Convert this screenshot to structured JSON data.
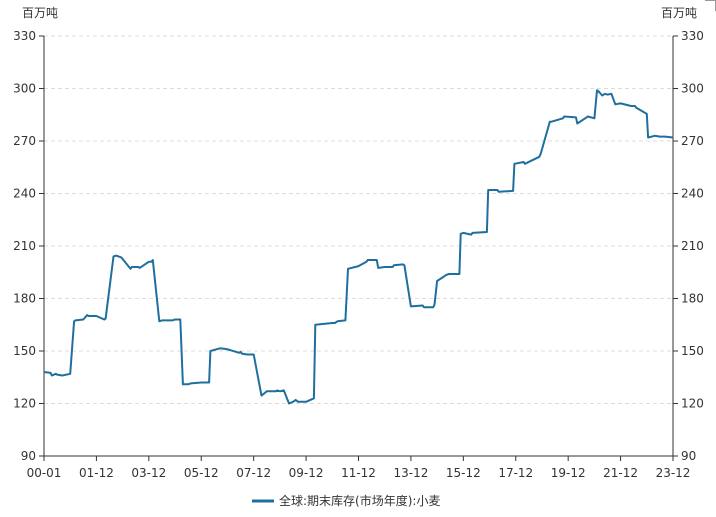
{
  "chart_data": {
    "type": "line",
    "y_unit_left": "百万吨",
    "y_unit_right": "百万吨",
    "ylim": [
      90,
      330
    ],
    "y_ticks": [
      90,
      120,
      150,
      180,
      210,
      240,
      270,
      300,
      330
    ],
    "x_tick_labels": [
      "00-01",
      "01-12",
      "03-12",
      "05-12",
      "07-12",
      "09-12",
      "11-12",
      "13-12",
      "15-12",
      "17-12",
      "19-12",
      "21-12",
      "23-12"
    ],
    "xlim": [
      2000.0,
      2024.0
    ],
    "grid": "horizontal dashed",
    "legend_position": "bottom",
    "colors": {
      "series": "#1f6f9e",
      "axis": "#333333",
      "grid": "#dddddd"
    },
    "series": [
      {
        "name": "全球:期末库存(市场年度):小麦",
        "x": [
          2000.0,
          2000.25,
          2000.3,
          2000.45,
          2000.5,
          2000.7,
          2001.0,
          2001.15,
          2001.2,
          2001.5,
          2001.65,
          2001.7,
          2002.0,
          2002.3,
          2002.35,
          2002.65,
          2002.75,
          2002.95,
          2003.3,
          2003.35,
          2003.6,
          2003.65,
          2004.0,
          2004.1,
          2004.15,
          2004.4,
          2004.5,
          2004.9,
          2005.0,
          2005.2,
          2005.3,
          2005.5,
          2005.6,
          2006.0,
          2006.3,
          2006.35,
          2006.7,
          2006.75,
          2007.0,
          2007.45,
          2007.5,
          2007.55,
          2007.75,
          2008.0,
          2008.3,
          2008.5,
          2008.85,
          2008.9,
          2009.0,
          2009.15,
          2009.35,
          2009.5,
          2009.6,
          2009.7,
          2009.75,
          2010.0,
          2010.3,
          2010.35,
          2011.0,
          2011.1,
          2011.2,
          2011.5,
          2011.6,
          2012.0,
          2012.3,
          2012.35,
          2012.7,
          2012.75,
          2013.0,
          2013.3,
          2013.35,
          2013.7,
          2013.75,
          2014.0,
          2014.45,
          2014.5,
          2014.85,
          2014.9,
          2015.0,
          2015.35,
          2015.45,
          2015.85,
          2015.9,
          2016.0,
          2016.3,
          2016.35,
          2016.9,
          2016.95,
          2017.3,
          2017.35,
          2017.9,
          2017.95,
          2018.3,
          2018.35,
          2018.9,
          2018.95,
          2019.3,
          2019.35,
          2019.8,
          2019.85,
          2020.3,
          2020.35,
          2020.7,
          2020.75,
          2021.0,
          2021.1,
          2021.15,
          2021.3,
          2021.4,
          2021.5,
          2021.65,
          2021.8,
          2022.0,
          2022.4,
          2022.45,
          2022.55,
          2022.6,
          2023.0,
          2023.05,
          2023.3,
          2023.5,
          2023.7,
          2024.0
        ],
        "values": [
          138,
          137.5,
          136,
          137,
          136.5,
          136,
          137,
          167,
          167.5,
          168,
          170.5,
          170,
          170,
          168,
          168.5,
          204,
          204.5,
          203.5,
          197,
          198,
          198,
          197.5,
          201,
          201,
          202,
          167,
          167.5,
          167.5,
          168,
          168,
          131,
          131,
          131.5,
          132,
          132,
          150,
          151.5,
          151.5,
          151,
          149,
          149.5,
          148.5,
          148,
          148,
          124.5,
          127,
          127,
          127.5,
          127,
          127.5,
          120,
          121,
          122,
          121,
          121,
          121,
          123,
          165,
          166,
          166,
          167,
          167.5,
          197,
          198.5,
          201,
          202,
          202,
          197.5,
          198,
          198,
          199,
          199.5,
          199,
          175.5,
          176,
          175,
          175,
          176.5,
          190,
          193.5,
          194,
          194,
          217,
          217.5,
          216.5,
          217.5,
          218,
          242,
          242,
          241,
          241.5,
          257,
          258,
          257,
          261,
          262.5,
          281,
          281,
          283,
          284,
          283.5,
          280,
          283.5,
          284,
          283,
          299,
          298.5,
          296,
          297,
          296.5,
          297,
          291,
          291.5,
          290,
          290,
          290,
          289,
          285.5,
          272,
          273,
          272.5,
          272.5,
          272
        ]
      }
    ]
  }
}
